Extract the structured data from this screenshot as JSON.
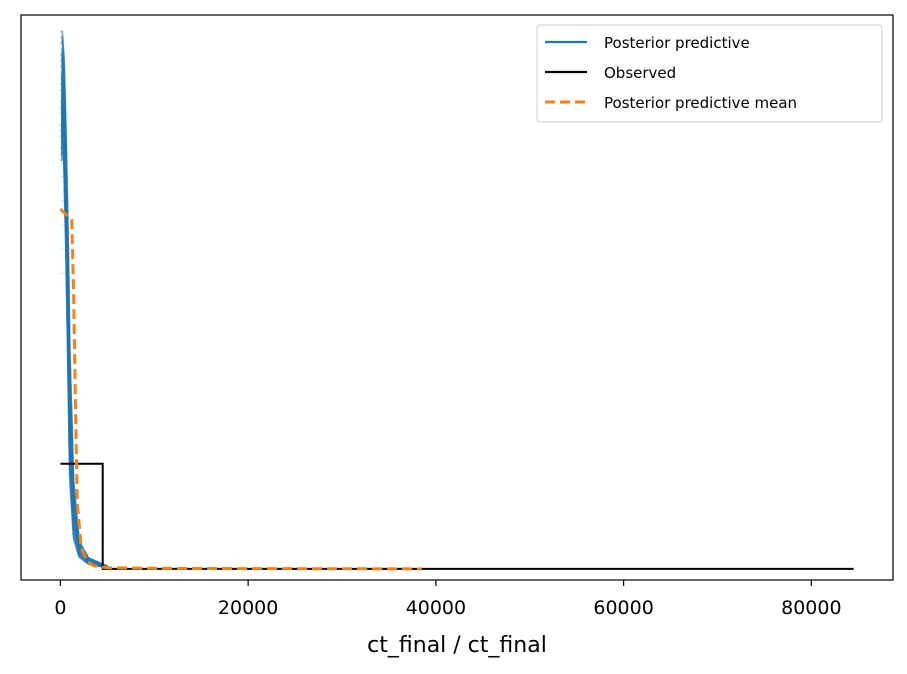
{
  "chart_data": {
    "type": "line",
    "title": "",
    "xlabel": "ct_final / ct_final",
    "ylabel": "",
    "xlim": [
      -4200,
      88700
    ],
    "ylim": [
      -0.02,
      1.0
    ],
    "xticks": [
      0,
      20000,
      40000,
      60000,
      80000
    ],
    "xtick_labels": [
      "0",
      "20000",
      "40000",
      "60000",
      "80000"
    ],
    "yticks_visible": false,
    "grid": false,
    "legend_position": "top-right",
    "legend": [
      "Posterior predictive",
      "Observed",
      "Posterior predictive mean"
    ],
    "colors": {
      "posterior_predictive": "#1f77b4",
      "observed": "#000000",
      "posterior_predictive_mean": "#ff7f0e"
    },
    "series": [
      {
        "name": "Observed",
        "style": "step",
        "x": [
          0,
          4500,
          4500,
          84500
        ],
        "y": [
          0.19,
          0.19,
          0.0,
          0.0
        ]
      },
      {
        "name": "Posterior predictive mean",
        "style": "step-dashed",
        "x": [
          0,
          1200,
          1400,
          1600,
          1800,
          2200,
          2800,
          3500,
          5000,
          10000,
          20000,
          38500
        ],
        "y": [
          0.65,
          0.63,
          0.5,
          0.3,
          0.12,
          0.04,
          0.015,
          0.006,
          0.002,
          0.001,
          0.0005,
          0.0
        ]
      },
      {
        "name": "Posterior predictive",
        "style": "many-draws",
        "x": [
          200,
          400,
          600,
          800,
          1000,
          1400,
          2000,
          3000,
          5000
        ],
        "y_upper": [
          0.97,
          0.92,
          0.78,
          0.62,
          0.4,
          0.16,
          0.05,
          0.02,
          0.005
        ],
        "y_lower": [
          0.8,
          0.7,
          0.55,
          0.35,
          0.15,
          0.05,
          0.02,
          0.008,
          0.002
        ]
      }
    ]
  }
}
